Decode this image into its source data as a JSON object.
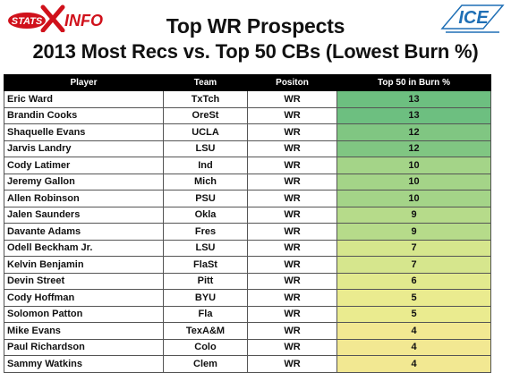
{
  "header": {
    "logo_left_text": "STATS INFO",
    "logo_right_text": "ICE",
    "title": "Top WR Prospects",
    "subtitle": "2013 Most Recs vs. Top 50 CBs (Lowest Burn %)"
  },
  "table": {
    "columns": [
      "Player",
      "Team",
      "Positon",
      "Top 50 in Burn %"
    ],
    "rows": [
      {
        "player": "Eric Ward",
        "team": "TxTch",
        "position": "WR",
        "value": "13",
        "color": "#6dbf80"
      },
      {
        "player": "Brandin Cooks",
        "team": "OreSt",
        "position": "WR",
        "value": "13",
        "color": "#6dbf80"
      },
      {
        "player": "Shaquelle Evans",
        "team": "UCLA",
        "position": "WR",
        "value": "12",
        "color": "#80c682"
      },
      {
        "player": "Jarvis Landry",
        "team": "LSU",
        "position": "WR",
        "value": "12",
        "color": "#80c682"
      },
      {
        "player": "Cody Latimer",
        "team": "Ind",
        "position": "WR",
        "value": "10",
        "color": "#a4d488"
      },
      {
        "player": "Jeremy Gallon",
        "team": "Mich",
        "position": "WR",
        "value": "10",
        "color": "#a4d488"
      },
      {
        "player": "Allen Robinson",
        "team": "PSU",
        "position": "WR",
        "value": "10",
        "color": "#a4d488"
      },
      {
        "player": "Jalen Saunders",
        "team": "Okla",
        "position": "WR",
        "value": "9",
        "color": "#b6db8a"
      },
      {
        "player": "Davante Adams",
        "team": "Fres",
        "position": "WR",
        "value": "9",
        "color": "#b6db8a"
      },
      {
        "player": "Odell Beckham Jr.",
        "team": "LSU",
        "position": "WR",
        "value": "7",
        "color": "#d6e68d"
      },
      {
        "player": "Kelvin Benjamin",
        "team": "FlaSt",
        "position": "WR",
        "value": "7",
        "color": "#d6e68d"
      },
      {
        "player": "Devin Street",
        "team": "Pitt",
        "position": "WR",
        "value": "6",
        "color": "#e2ea8e"
      },
      {
        "player": "Cody Hoffman",
        "team": "BYU",
        "position": "WR",
        "value": "5",
        "color": "#eaeb8f"
      },
      {
        "player": "Solomon Patton",
        "team": "Fla",
        "position": "WR",
        "value": "5",
        "color": "#eaeb8f"
      },
      {
        "player": "Mike Evans",
        "team": "TexA&M",
        "position": "WR",
        "value": "4",
        "color": "#f2e892"
      },
      {
        "player": "Paul Richardson",
        "team": "Colo",
        "position": "WR",
        "value": "4",
        "color": "#f2e892"
      },
      {
        "player": "Sammy Watkins",
        "team": "Clem",
        "position": "WR",
        "value": "4",
        "color": "#f2e892"
      }
    ]
  },
  "colors": {
    "header_bg": "#000000",
    "header_text": "#ffffff",
    "logo_red": "#d0111b",
    "logo_blue": "#1f6fb5"
  }
}
